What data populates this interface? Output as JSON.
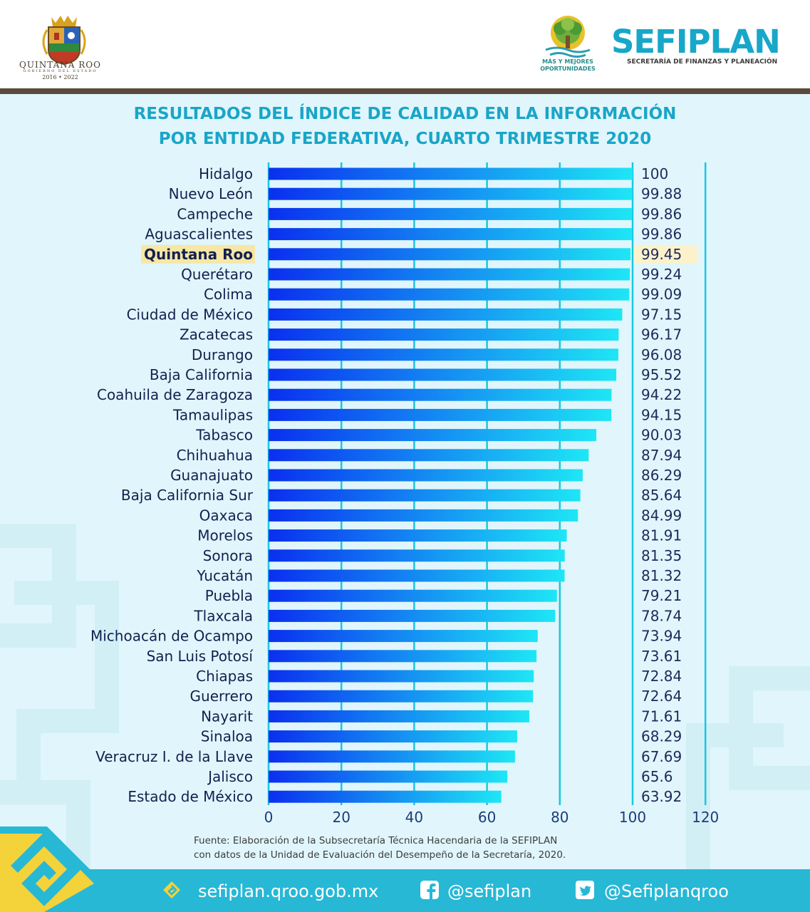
{
  "header": {
    "qroo_name": "QUINTANA ROO",
    "qroo_sub": "GOBIERNO DEL ESTADO",
    "qroo_years": "2016 • 2022",
    "tree_line1": "MÁS Y MEJORES",
    "tree_line2": "OPORTUNIDADES",
    "brand": "SEFIPLAN",
    "brand_sub": "SECRETARÍA DE FINANZAS Y PLANEACIÓN"
  },
  "title_line1": "RESULTADOS DEL ÍNDICE DE CALIDAD EN LA INFORMACIÓN",
  "title_line2": "POR ENTIDAD FEDERATIVA, CUARTO TRIMESTRE 2020",
  "chart_data": {
    "type": "bar",
    "orientation": "horizontal",
    "title": "RESULTADOS DEL ÍNDICE DE CALIDAD EN LA INFORMACIÓN POR ENTIDAD FEDERATIVA, CUARTO TRIMESTRE 2020",
    "categories": [
      "Hidalgo",
      "Nuevo León",
      "Campeche",
      "Aguascalientes",
      "Quintana Roo",
      "Querétaro",
      "Colima",
      "Ciudad de México",
      "Zacatecas",
      "Durango",
      "Baja California",
      "Coahuila de Zaragoza",
      "Tamaulipas",
      "Tabasco",
      "Chihuahua",
      "Guanajuato",
      "Baja California Sur",
      "Oaxaca",
      "Morelos",
      "Sonora",
      "Yucatán",
      "Puebla",
      "Tlaxcala",
      "Michoacán de Ocampo",
      "San Luis Potosí",
      "Chiapas",
      "Guerrero",
      "Nayarit",
      "Sinaloa",
      "Veracruz I. de la Llave",
      "Jalisco",
      "Estado de México"
    ],
    "values": [
      100,
      99.88,
      99.86,
      99.86,
      99.45,
      99.24,
      99.09,
      97.15,
      96.17,
      96.08,
      95.52,
      94.22,
      94.15,
      90.03,
      87.94,
      86.29,
      85.64,
      84.99,
      81.91,
      81.35,
      81.32,
      79.21,
      78.74,
      73.94,
      73.61,
      72.84,
      72.64,
      71.61,
      68.29,
      67.69,
      65.6,
      63.92
    ],
    "value_labels": [
      "100",
      "99.88",
      "99.86",
      "99.86",
      "99.45",
      "99.24",
      "99.09",
      "97.15",
      "96.17",
      "96.08",
      "95.52",
      "94.22",
      "94.15",
      "90.03",
      "87.94",
      "86.29",
      "85.64",
      "84.99",
      "81.91",
      "81.35",
      "81.32",
      "79.21",
      "78.74",
      "73.94",
      "73.61",
      "72.84",
      "72.64",
      "71.61",
      "68.29",
      "67.69",
      "65.6",
      "63.92"
    ],
    "highlight": "Quintana Roo",
    "xlim": [
      0,
      120
    ],
    "xticks": [
      "0",
      "20",
      "40",
      "60",
      "80",
      "100",
      "120"
    ],
    "grid": true,
    "colors": {
      "bar_start": "#0a2ff0",
      "bar_end": "#1ee6f5",
      "grid": "#19c7e0",
      "label": "#13204f",
      "highlight_band": "#f7e7a6"
    }
  },
  "source_line1": "Fuente: Elaboración de la Subsecretaría Técnica Hacendaria de la SEFIPLAN",
  "source_line2": "con datos de la Unidad de Evaluación del Desempeño de la Secretaría, 2020.",
  "footer": {
    "website": "sefiplan.qroo.gob.mx",
    "facebook": "@sefiplan",
    "twitter": "@Sefiplanqroo"
  }
}
